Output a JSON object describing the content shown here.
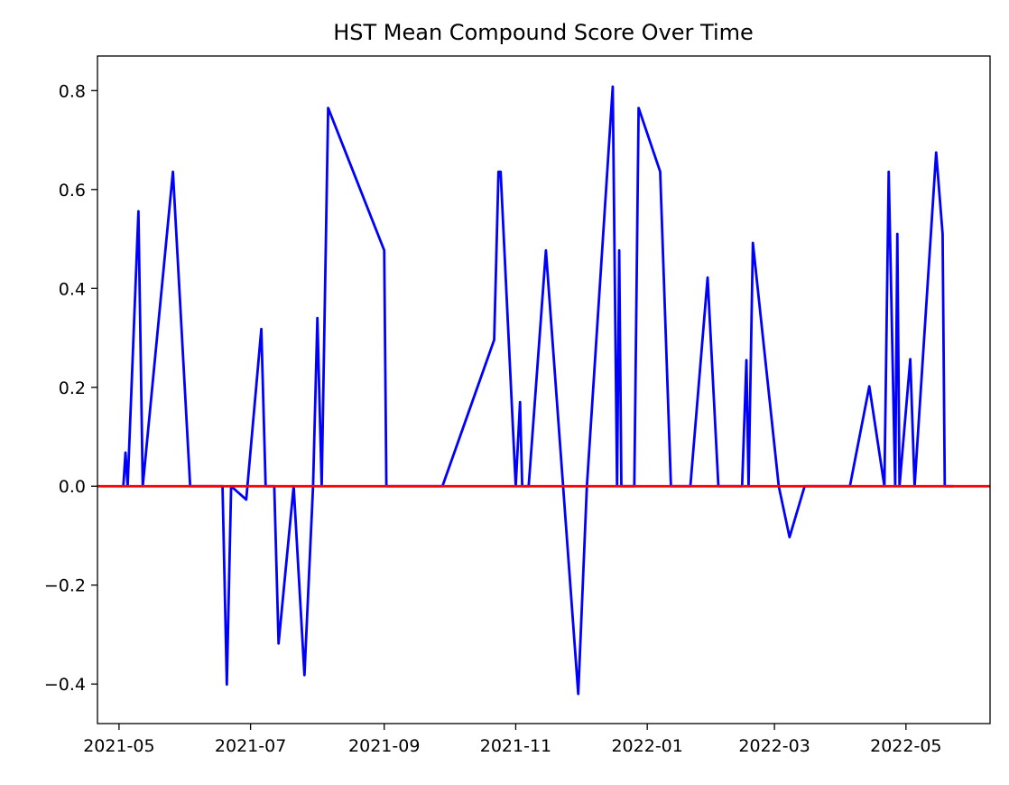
{
  "chart_data": {
    "type": "line",
    "title": "HST Mean Compound Score Over Time",
    "xlabel": "",
    "ylabel": "",
    "x_axis_type": "date",
    "xlim": [
      "2021-04-21",
      "2022-06-09"
    ],
    "ylim": [
      -0.48,
      0.87
    ],
    "x_ticks": [
      {
        "date": "2021-05-01",
        "label": "2021-05"
      },
      {
        "date": "2021-07-01",
        "label": "2021-07"
      },
      {
        "date": "2021-09-01",
        "label": "2021-09"
      },
      {
        "date": "2021-11-01",
        "label": "2021-11"
      },
      {
        "date": "2022-01-01",
        "label": "2022-01"
      },
      {
        "date": "2022-03-01",
        "label": "2022-03"
      },
      {
        "date": "2022-05-01",
        "label": "2022-05"
      }
    ],
    "y_ticks": [
      {
        "value": -0.4,
        "label": "−0.4"
      },
      {
        "value": -0.2,
        "label": "−0.2"
      },
      {
        "value": 0.0,
        "label": "0.0"
      },
      {
        "value": 0.2,
        "label": "0.2"
      },
      {
        "value": 0.4,
        "label": "0.4"
      },
      {
        "value": 0.6,
        "label": "0.6"
      },
      {
        "value": 0.8,
        "label": "0.8"
      }
    ],
    "grid": false,
    "colors": {
      "series": "#0000ff",
      "reference": "#ff0000",
      "axes": "#000000"
    },
    "reference_line": {
      "y": 0.0,
      "color": "#ff0000"
    },
    "series": [
      {
        "color": "#0000ff",
        "points": [
          {
            "x": "2021-05-03",
            "y": 0.0
          },
          {
            "x": "2021-05-04",
            "y": 0.068
          },
          {
            "x": "2021-05-05",
            "y": 0.0
          },
          {
            "x": "2021-05-10",
            "y": 0.556
          },
          {
            "x": "2021-05-12",
            "y": 0.0
          },
          {
            "x": "2021-05-26",
            "y": 0.636
          },
          {
            "x": "2021-06-03",
            "y": 0.0
          },
          {
            "x": "2021-06-18",
            "y": 0.0
          },
          {
            "x": "2021-06-20",
            "y": -0.401
          },
          {
            "x": "2021-06-22",
            "y": 0.0
          },
          {
            "x": "2021-06-29",
            "y": -0.027
          },
          {
            "x": "2021-07-06",
            "y": 0.318
          },
          {
            "x": "2021-07-08",
            "y": 0.0
          },
          {
            "x": "2021-07-12",
            "y": 0.0
          },
          {
            "x": "2021-07-14",
            "y": -0.318
          },
          {
            "x": "2021-07-21",
            "y": 0.0
          },
          {
            "x": "2021-07-26",
            "y": -0.382
          },
          {
            "x": "2021-07-30",
            "y": 0.0
          },
          {
            "x": "2021-08-01",
            "y": 0.34
          },
          {
            "x": "2021-08-03",
            "y": 0.0
          },
          {
            "x": "2021-08-06",
            "y": 0.765
          },
          {
            "x": "2021-09-01",
            "y": 0.477
          },
          {
            "x": "2021-09-02",
            "y": 0.0
          },
          {
            "x": "2021-09-28",
            "y": 0.0
          },
          {
            "x": "2021-10-22",
            "y": 0.296
          },
          {
            "x": "2021-10-24",
            "y": 0.636
          },
          {
            "x": "2021-10-25",
            "y": 0.636
          },
          {
            "x": "2021-11-01",
            "y": 0.0
          },
          {
            "x": "2021-11-03",
            "y": 0.17
          },
          {
            "x": "2021-11-04",
            "y": 0.0
          },
          {
            "x": "2021-11-07",
            "y": 0.0
          },
          {
            "x": "2021-11-15",
            "y": 0.477
          },
          {
            "x": "2021-11-30",
            "y": -0.42
          },
          {
            "x": "2021-12-04",
            "y": 0.0
          },
          {
            "x": "2021-12-16",
            "y": 0.808
          },
          {
            "x": "2021-12-18",
            "y": 0.0
          },
          {
            "x": "2021-12-19",
            "y": 0.477
          },
          {
            "x": "2021-12-20",
            "y": 0.0
          },
          {
            "x": "2021-12-26",
            "y": 0.0
          },
          {
            "x": "2021-12-28",
            "y": 0.765
          },
          {
            "x": "2022-01-07",
            "y": 0.636
          },
          {
            "x": "2022-01-12",
            "y": 0.0
          },
          {
            "x": "2022-01-21",
            "y": 0.0
          },
          {
            "x": "2022-01-29",
            "y": 0.422
          },
          {
            "x": "2022-02-03",
            "y": 0.0
          },
          {
            "x": "2022-02-14",
            "y": 0.0
          },
          {
            "x": "2022-02-16",
            "y": 0.255
          },
          {
            "x": "2022-02-17",
            "y": 0.0
          },
          {
            "x": "2022-02-19",
            "y": 0.492
          },
          {
            "x": "2022-03-03",
            "y": 0.0
          },
          {
            "x": "2022-03-08",
            "y": -0.103
          },
          {
            "x": "2022-03-15",
            "y": 0.0
          },
          {
            "x": "2022-04-05",
            "y": 0.0
          },
          {
            "x": "2022-04-14",
            "y": 0.202
          },
          {
            "x": "2022-04-21",
            "y": 0.0
          },
          {
            "x": "2022-04-23",
            "y": 0.636
          },
          {
            "x": "2022-04-26",
            "y": 0.0
          },
          {
            "x": "2022-04-27",
            "y": 0.51
          },
          {
            "x": "2022-04-28",
            "y": 0.0
          },
          {
            "x": "2022-05-03",
            "y": 0.257
          },
          {
            "x": "2022-05-05",
            "y": 0.0
          },
          {
            "x": "2022-05-15",
            "y": 0.675
          },
          {
            "x": "2022-05-18",
            "y": 0.51
          },
          {
            "x": "2022-05-19",
            "y": 0.0
          },
          {
            "x": "2022-05-23",
            "y": 0.0
          }
        ]
      }
    ]
  }
}
